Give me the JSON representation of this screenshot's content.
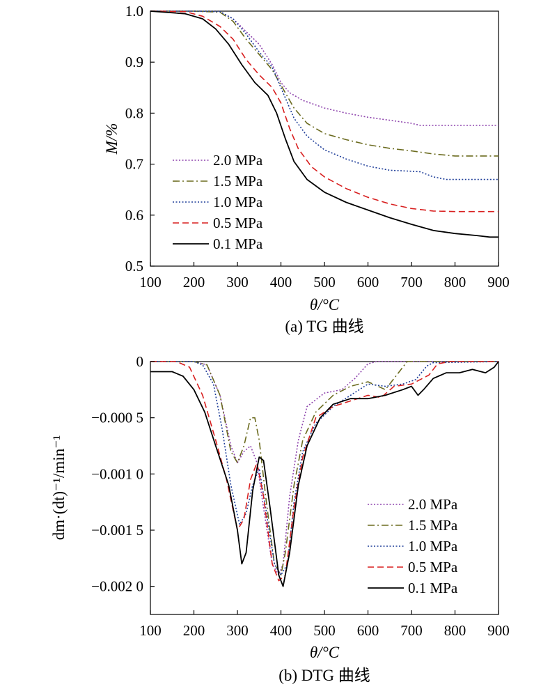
{
  "chart_data": [
    {
      "type": "line",
      "caption": "(a) TG 曲线",
      "xlabel": "θ/°C",
      "ylabel": "M/%",
      "xlim": [
        100,
        900
      ],
      "ylim": [
        0.5,
        1.0
      ],
      "x_ticks": [
        100,
        200,
        300,
        400,
        500,
        600,
        700,
        800,
        900
      ],
      "x_tick_labels": [
        "100",
        "200",
        "300",
        "400",
        "500",
        "600",
        "700",
        "800",
        "900"
      ],
      "y_ticks": [
        0.5,
        0.6,
        0.7,
        0.8,
        0.9,
        1.0
      ],
      "y_tick_labels": [
        "0.5",
        "0.6",
        "0.7",
        "0.8",
        "0.9",
        "1.0"
      ],
      "legend_position": "center-left",
      "series": [
        {
          "name": "2.0 MPa",
          "style": "dotted",
          "color": "#8e44ad",
          "points": [
            [
              100,
              1.0
            ],
            [
              200,
              1.0
            ],
            [
              260,
              0.999
            ],
            [
              290,
              0.985
            ],
            [
              320,
              0.96
            ],
            [
              350,
              0.935
            ],
            [
              380,
              0.895
            ],
            [
              400,
              0.86
            ],
            [
              420,
              0.84
            ],
            [
              450,
              0.825
            ],
            [
              500,
              0.81
            ],
            [
              550,
              0.8
            ],
            [
              600,
              0.792
            ],
            [
              650,
              0.786
            ],
            [
              700,
              0.78
            ],
            [
              720,
              0.776
            ],
            [
              800,
              0.776
            ],
            [
              900,
              0.776
            ]
          ]
        },
        {
          "name": "1.5 MPa",
          "style": "dash-dot",
          "color": "#6b6b1f",
          "points": [
            [
              100,
              1.0
            ],
            [
              200,
              1.0
            ],
            [
              260,
              0.998
            ],
            [
              290,
              0.98
            ],
            [
              320,
              0.945
            ],
            [
              350,
              0.915
            ],
            [
              380,
              0.885
            ],
            [
              400,
              0.855
            ],
            [
              430,
              0.81
            ],
            [
              460,
              0.78
            ],
            [
              500,
              0.76
            ],
            [
              550,
              0.748
            ],
            [
              600,
              0.738
            ],
            [
              650,
              0.731
            ],
            [
              700,
              0.726
            ],
            [
              750,
              0.72
            ],
            [
              800,
              0.716
            ],
            [
              900,
              0.716
            ]
          ]
        },
        {
          "name": "1.0 MPa",
          "style": "dotted",
          "color": "#1f3e99",
          "points": [
            [
              100,
              1.0
            ],
            [
              200,
              1.0
            ],
            [
              260,
              0.999
            ],
            [
              290,
              0.985
            ],
            [
              320,
              0.955
            ],
            [
              350,
              0.92
            ],
            [
              380,
              0.89
            ],
            [
              400,
              0.85
            ],
            [
              430,
              0.79
            ],
            [
              460,
              0.755
            ],
            [
              500,
              0.728
            ],
            [
              550,
              0.71
            ],
            [
              600,
              0.696
            ],
            [
              650,
              0.688
            ],
            [
              700,
              0.686
            ],
            [
              720,
              0.685
            ],
            [
              750,
              0.675
            ],
            [
              780,
              0.67
            ],
            [
              900,
              0.67
            ]
          ]
        },
        {
          "name": "0.5 MPa",
          "style": "dashed",
          "color": "#d81f1f",
          "points": [
            [
              100,
              1.0
            ],
            [
              180,
              0.999
            ],
            [
              220,
              0.99
            ],
            [
              260,
              0.97
            ],
            [
              290,
              0.945
            ],
            [
              320,
              0.905
            ],
            [
              350,
              0.875
            ],
            [
              380,
              0.85
            ],
            [
              400,
              0.82
            ],
            [
              420,
              0.77
            ],
            [
              440,
              0.73
            ],
            [
              470,
              0.695
            ],
            [
              500,
              0.675
            ],
            [
              550,
              0.652
            ],
            [
              600,
              0.635
            ],
            [
              650,
              0.622
            ],
            [
              700,
              0.613
            ],
            [
              750,
              0.608
            ],
            [
              800,
              0.607
            ],
            [
              900,
              0.607
            ]
          ]
        },
        {
          "name": "0.1 MPa",
          "style": "solid",
          "color": "#000000",
          "points": [
            [
              100,
              1.0
            ],
            [
              180,
              0.995
            ],
            [
              220,
              0.985
            ],
            [
              250,
              0.965
            ],
            [
              280,
              0.935
            ],
            [
              310,
              0.895
            ],
            [
              340,
              0.86
            ],
            [
              370,
              0.835
            ],
            [
              390,
              0.8
            ],
            [
              410,
              0.75
            ],
            [
              430,
              0.705
            ],
            [
              460,
              0.67
            ],
            [
              500,
              0.645
            ],
            [
              550,
              0.625
            ],
            [
              600,
              0.61
            ],
            [
              650,
              0.595
            ],
            [
              700,
              0.582
            ],
            [
              750,
              0.57
            ],
            [
              800,
              0.564
            ],
            [
              850,
              0.56
            ],
            [
              880,
              0.557
            ],
            [
              900,
              0.557
            ]
          ]
        }
      ]
    },
    {
      "type": "line",
      "caption": "(b) DTG 曲线",
      "xlabel": "θ/°C",
      "ylabel": "dm·(dt)⁻¹/min⁻¹",
      "xlim": [
        100,
        900
      ],
      "ylim": [
        -0.00225,
        0.0
      ],
      "x_ticks": [
        100,
        200,
        300,
        400,
        500,
        600,
        700,
        800,
        900
      ],
      "x_tick_labels": [
        "100",
        "200",
        "300",
        "400",
        "500",
        "600",
        "700",
        "800",
        "900"
      ],
      "y_ticks": [
        0,
        -0.0005,
        -0.001,
        -0.0015,
        -0.002
      ],
      "y_tick_labels": [
        "0",
        "−0.000 5",
        "−0.001 0",
        "−0.001 5",
        "−0.002 0"
      ],
      "legend_position": "lower-right",
      "series": [
        {
          "name": "2.0 MPa",
          "style": "dotted",
          "color": "#8e44ad",
          "points": [
            [
              100,
              0.0
            ],
            [
              200,
              0.0
            ],
            [
              230,
              -3e-05
            ],
            [
              260,
              -0.0003
            ],
            [
              285,
              -0.00075
            ],
            [
              300,
              -0.0009
            ],
            [
              315,
              -0.0008
            ],
            [
              330,
              -0.00075
            ],
            [
              345,
              -0.0009
            ],
            [
              360,
              -0.0013
            ],
            [
              380,
              -0.0018
            ],
            [
              395,
              -0.0019
            ],
            [
              405,
              -0.0018
            ],
            [
              420,
              -0.0012
            ],
            [
              440,
              -0.0007
            ],
            [
              460,
              -0.0004
            ],
            [
              500,
              -0.00028
            ],
            [
              540,
              -0.00025
            ],
            [
              570,
              -0.00015
            ],
            [
              600,
              -2e-05
            ],
            [
              620,
              0.0
            ],
            [
              900,
              0.0
            ]
          ]
        },
        {
          "name": "1.5 MPa",
          "style": "dash-dot",
          "color": "#6b6b1f",
          "points": [
            [
              100,
              0.0
            ],
            [
              200,
              0.0
            ],
            [
              230,
              -3e-05
            ],
            [
              260,
              -0.0003
            ],
            [
              285,
              -0.0008
            ],
            [
              300,
              -0.0009
            ],
            [
              315,
              -0.00075
            ],
            [
              330,
              -0.0005
            ],
            [
              340,
              -0.0005
            ],
            [
              350,
              -0.0007
            ],
            [
              365,
              -0.0012
            ],
            [
              385,
              -0.0018
            ],
            [
              400,
              -0.0019
            ],
            [
              410,
              -0.0017
            ],
            [
              430,
              -0.0011
            ],
            [
              450,
              -0.0007
            ],
            [
              480,
              -0.00045
            ],
            [
              520,
              -0.0003
            ],
            [
              560,
              -0.00022
            ],
            [
              600,
              -0.00018
            ],
            [
              640,
              -0.00025
            ],
            [
              670,
              -0.0001
            ],
            [
              690,
              0.0
            ],
            [
              900,
              0.0
            ]
          ]
        },
        {
          "name": "1.0 MPa",
          "style": "dotted",
          "color": "#1f3e99",
          "points": [
            [
              100,
              0.0
            ],
            [
              200,
              0.0
            ],
            [
              220,
              -3e-05
            ],
            [
              245,
              -0.0002
            ],
            [
              265,
              -0.0006
            ],
            [
              285,
              -0.0011
            ],
            [
              305,
              -0.00145
            ],
            [
              320,
              -0.00135
            ],
            [
              335,
              -0.0011
            ],
            [
              350,
              -0.00095
            ],
            [
              365,
              -0.0013
            ],
            [
              385,
              -0.0018
            ],
            [
              400,
              -0.0019
            ],
            [
              415,
              -0.0018
            ],
            [
              430,
              -0.00125
            ],
            [
              450,
              -0.0008
            ],
            [
              480,
              -0.00055
            ],
            [
              520,
              -0.0004
            ],
            [
              560,
              -0.0003
            ],
            [
              600,
              -0.0002
            ],
            [
              640,
              -0.00022
            ],
            [
              680,
              -0.0002
            ],
            [
              710,
              -0.00016
            ],
            [
              735,
              -4e-05
            ],
            [
              750,
              -1e-05
            ],
            [
              900,
              0.0
            ]
          ]
        },
        {
          "name": "0.5 MPa",
          "style": "dashed",
          "color": "#d81f1f",
          "points": [
            [
              100,
              0.0
            ],
            [
              160,
              0.0
            ],
            [
              190,
              -5e-05
            ],
            [
              220,
              -0.0003
            ],
            [
              250,
              -0.0007
            ],
            [
              275,
              -0.00105
            ],
            [
              300,
              -0.0015
            ],
            [
              315,
              -0.0014
            ],
            [
              330,
              -0.00105
            ],
            [
              345,
              -0.0009
            ],
            [
              360,
              -0.0012
            ],
            [
              380,
              -0.0018
            ],
            [
              395,
              -0.00195
            ],
            [
              410,
              -0.0019
            ],
            [
              430,
              -0.0013
            ],
            [
              450,
              -0.00085
            ],
            [
              480,
              -0.0005
            ],
            [
              520,
              -0.0004
            ],
            [
              560,
              -0.00035
            ],
            [
              600,
              -0.0003
            ],
            [
              630,
              -0.00032
            ],
            [
              660,
              -0.00022
            ],
            [
              700,
              -0.0002
            ],
            [
              740,
              -0.00012
            ],
            [
              760,
              -2e-05
            ],
            [
              790,
              0.0
            ],
            [
              900,
              0.0
            ]
          ]
        },
        {
          "name": "0.1 MPa",
          "style": "solid",
          "color": "#000000",
          "points": [
            [
              100,
              -9e-05
            ],
            [
              150,
              -9e-05
            ],
            [
              175,
              -0.00013
            ],
            [
              200,
              -0.00025
            ],
            [
              225,
              -0.00045
            ],
            [
              250,
              -0.00075
            ],
            [
              280,
              -0.0011
            ],
            [
              300,
              -0.0015
            ],
            [
              310,
              -0.0018
            ],
            [
              320,
              -0.0017
            ],
            [
              335,
              -0.00115
            ],
            [
              350,
              -0.00085
            ],
            [
              360,
              -0.00088
            ],
            [
              375,
              -0.0013
            ],
            [
              395,
              -0.0019
            ],
            [
              405,
              -0.002
            ],
            [
              420,
              -0.0017
            ],
            [
              440,
              -0.0011
            ],
            [
              460,
              -0.00075
            ],
            [
              490,
              -0.0005
            ],
            [
              520,
              -0.00038
            ],
            [
              560,
              -0.00033
            ],
            [
              600,
              -0.00033
            ],
            [
              640,
              -0.0003
            ],
            [
              680,
              -0.00025
            ],
            [
              700,
              -0.00022
            ],
            [
              715,
              -0.0003
            ],
            [
              730,
              -0.00024
            ],
            [
              750,
              -0.00015
            ],
            [
              780,
              -0.0001
            ],
            [
              810,
              -0.0001
            ],
            [
              840,
              -7e-05
            ],
            [
              870,
              -0.0001
            ],
            [
              890,
              -5e-05
            ],
            [
              900,
              0.0
            ]
          ]
        }
      ]
    }
  ]
}
